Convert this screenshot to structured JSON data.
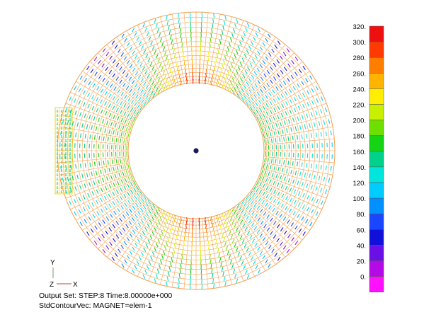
{
  "caption": {
    "line1": "Output Set: STEP:8 Time:8.00000e+000",
    "line2": "StdContourVec: MAGNET=elem-1"
  },
  "triad": {
    "y_label": "Y",
    "z_label": "Z",
    "x_label": "X"
  },
  "chart_data": {
    "type": "heatmap",
    "title": "",
    "plot": "vector field on annular finite-element mesh",
    "legend": {
      "placement": "right",
      "levels": [
        {
          "label": "320.",
          "value": 320,
          "color": "#ee1010"
        },
        {
          "label": "300.",
          "value": 300,
          "color": "#ff3a00"
        },
        {
          "label": "280.",
          "value": 280,
          "color": "#ff7e00"
        },
        {
          "label": "260.",
          "value": 260,
          "color": "#ffb400"
        },
        {
          "label": "240.",
          "value": 240,
          "color": "#ffee00"
        },
        {
          "label": "220.",
          "value": 220,
          "color": "#c8f000"
        },
        {
          "label": "200.",
          "value": 200,
          "color": "#6ee000"
        },
        {
          "label": "180.",
          "value": 180,
          "color": "#14d414"
        },
        {
          "label": "160.",
          "value": 160,
          "color": "#00d28c"
        },
        {
          "label": "140.",
          "value": 140,
          "color": "#00e6dc"
        },
        {
          "label": "120.",
          "value": 120,
          "color": "#00ccff"
        },
        {
          "label": "100.",
          "value": 100,
          "color": "#0090ff"
        },
        {
          "label": "80.",
          "value": 80,
          "color": "#1a46ff"
        },
        {
          "label": "60.",
          "value": 60,
          "color": "#1010d8"
        },
        {
          "label": "40.",
          "value": 40,
          "color": "#6a10e6"
        },
        {
          "label": "20.",
          "value": 20,
          "color": "#b40ae6"
        },
        {
          "label": "0.",
          "value": 0,
          "color": "#ff10ff"
        }
      ]
    }
  }
}
